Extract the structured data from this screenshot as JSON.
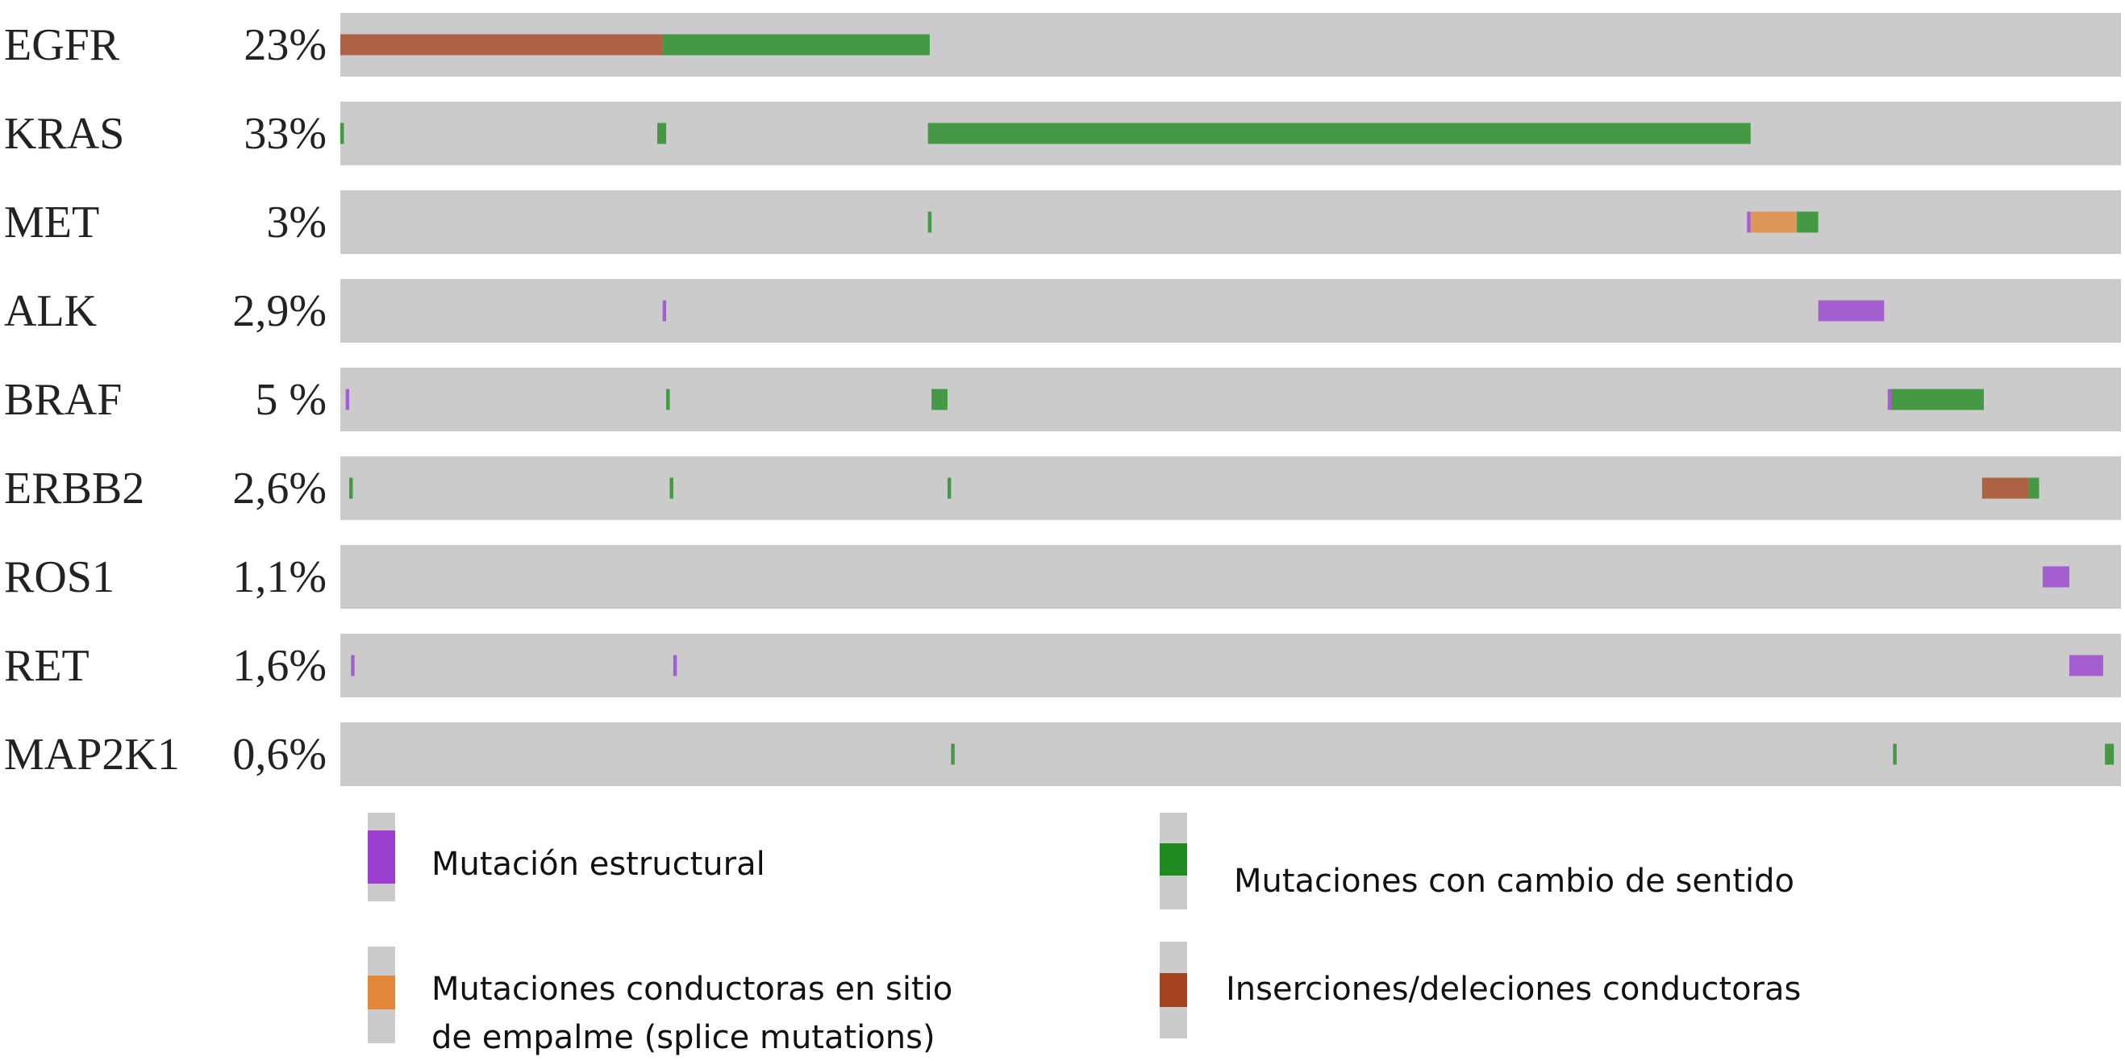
{
  "chart_data": {
    "type": "oncoprint",
    "x": {
      "unit": "samples (%)",
      "range": [
        0,
        100
      ]
    },
    "colors": {
      "track": "#cbcbcb",
      "structural": "#9a3fd0",
      "missense": "#1f8a1f",
      "splice": "#e2873a",
      "indel": "#a4421f"
    },
    "rows": [
      {
        "gene": "EGFR",
        "pct": "23%",
        "segments": [
          {
            "type": "indel",
            "start": 0.0,
            "end": 18.1
          },
          {
            "type": "missense",
            "start": 18.1,
            "end": 33.1
          }
        ]
      },
      {
        "gene": "KRAS",
        "pct": "33%",
        "segments": [
          {
            "type": "missense",
            "start": 0.0,
            "end": 0.2
          },
          {
            "type": "missense",
            "start": 17.8,
            "end": 18.3
          },
          {
            "type": "missense",
            "start": 33.0,
            "end": 79.2
          }
        ]
      },
      {
        "gene": "MET",
        "pct": "3%",
        "segments": [
          {
            "type": "missense",
            "start": 33.0,
            "end": 33.2
          },
          {
            "type": "structural",
            "start": 79.0,
            "end": 79.2
          },
          {
            "type": "splice",
            "start": 79.2,
            "end": 81.8
          },
          {
            "type": "missense",
            "start": 81.8,
            "end": 83.0
          }
        ]
      },
      {
        "gene": "ALK",
        "pct": "2,9%",
        "segments": [
          {
            "type": "structural",
            "start": 18.1,
            "end": 18.3
          },
          {
            "type": "structural",
            "start": 83.0,
            "end": 86.7
          }
        ]
      },
      {
        "gene": "BRAF",
        "pct": "5 %",
        "segments": [
          {
            "type": "structural",
            "start": 0.3,
            "end": 0.5
          },
          {
            "type": "missense",
            "start": 18.3,
            "end": 18.5
          },
          {
            "type": "missense",
            "start": 33.2,
            "end": 34.1
          },
          {
            "type": "structural",
            "start": 86.9,
            "end": 87.1
          },
          {
            "type": "missense",
            "start": 87.1,
            "end": 92.3
          }
        ]
      },
      {
        "gene": "ERBB2",
        "pct": "2,6%",
        "segments": [
          {
            "type": "missense",
            "start": 0.5,
            "end": 0.7
          },
          {
            "type": "missense",
            "start": 18.5,
            "end": 18.7
          },
          {
            "type": "missense",
            "start": 34.1,
            "end": 34.3
          },
          {
            "type": "indel",
            "start": 92.2,
            "end": 94.8
          },
          {
            "type": "missense",
            "start": 94.8,
            "end": 95.4
          }
        ]
      },
      {
        "gene": "ROS1",
        "pct": "1,1%",
        "segments": [
          {
            "type": "structural",
            "start": 95.6,
            "end": 97.1
          }
        ]
      },
      {
        "gene": "RET",
        "pct": "1,6%",
        "segments": [
          {
            "type": "structural",
            "start": 0.6,
            "end": 0.8
          },
          {
            "type": "structural",
            "start": 18.7,
            "end": 18.9
          },
          {
            "type": "structural",
            "start": 97.1,
            "end": 99.0
          }
        ]
      },
      {
        "gene": "MAP2K1",
        "pct": "0,6%",
        "segments": [
          {
            "type": "missense",
            "start": 34.3,
            "end": 34.5
          },
          {
            "type": "missense",
            "start": 87.2,
            "end": 87.4
          },
          {
            "type": "missense",
            "start": 99.1,
            "end": 99.6
          }
        ]
      }
    ],
    "legend": [
      {
        "type": "structural",
        "label": "Mutación estructural"
      },
      {
        "type": "missense",
        "label": "Mutaciones con cambio de sentido"
      },
      {
        "type": "splice",
        "label": "Mutaciones conductoras en sitio",
        "label2": "de empalme (splice mutations)"
      },
      {
        "type": "indel",
        "label": "Inserciones/deleciones conductoras"
      }
    ]
  }
}
